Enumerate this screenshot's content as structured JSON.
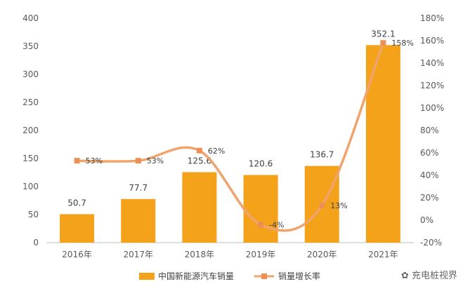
{
  "chart_data": {
    "type": "bar",
    "categories": [
      "2016年",
      "2017年",
      "2018年",
      "2019年",
      "2020年",
      "2021年"
    ],
    "series": [
      {
        "name": "中国新能源汽车销量",
        "type": "bar",
        "axis": "left",
        "values": [
          50.7,
          77.7,
          125.6,
          120.6,
          136.7,
          352.1
        ],
        "labels": [
          "50.7",
          "77.7",
          "125.6",
          "120.6",
          "136.7",
          "352.1"
        ]
      },
      {
        "name": "销量增长率",
        "type": "line",
        "axis": "right",
        "values": [
          53,
          53,
          62,
          -4,
          13,
          158
        ],
        "labels": [
          "53%",
          "53%",
          "62%",
          "-4%",
          "13%",
          "158%"
        ]
      }
    ],
    "left_axis": {
      "ylim": [
        0,
        400
      ],
      "ticks": [
        "0",
        "50",
        "100",
        "150",
        "200",
        "250",
        "300",
        "350",
        "400"
      ]
    },
    "right_axis": {
      "ylim": [
        -20,
        180
      ],
      "ticks": [
        "-20%",
        "0%",
        "20%",
        "40%",
        "60%",
        "80%",
        "100%",
        "120%",
        "140%",
        "160%",
        "180%"
      ]
    },
    "grid": false,
    "legend_position": "bottom",
    "colors": {
      "bar": "#F5A21B",
      "line": "#F0A46C",
      "marker": "#EE8F55"
    }
  },
  "watermark": "充电桩视界",
  "watermark_icon": "wechat-icon"
}
